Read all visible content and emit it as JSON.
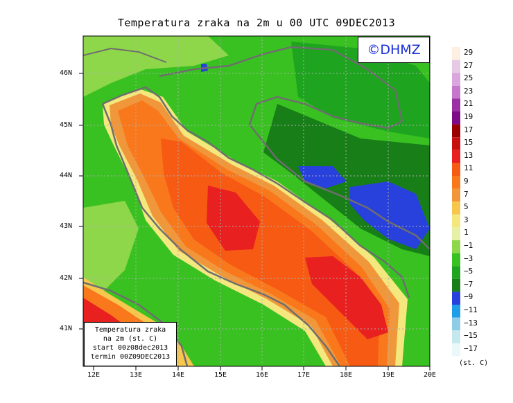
{
  "title": "Temperatura zraka na 2m u 00 UTC 09DEC2013",
  "logo": "©DHMZ",
  "info": {
    "line1": "Temperatura zraka",
    "line2": "na 2m (st. C)",
    "line3": "start 00z08dec2013",
    "line4": "termin 00Z09DEC2013"
  },
  "legend": {
    "labels": [
      "29",
      "27",
      "25",
      "23",
      "21",
      "19",
      "17",
      "15",
      "13",
      "11",
      "9",
      "7",
      "5",
      "3",
      "1",
      "−1",
      "−3",
      "−5",
      "−7",
      "−9",
      "−11",
      "−13",
      "−15",
      "−17"
    ],
    "colors": [
      "#fdefe2",
      "#e6c9e4",
      "#d9a6dd",
      "#c577cc",
      "#9b30a4",
      "#7d0a86",
      "#990000",
      "#c80f0f",
      "#e82020",
      "#f65a13",
      "#fa781c",
      "#f1973b",
      "#f7c74d",
      "#f3e77e",
      "#e7f1a6",
      "#8ed64a",
      "#39c121",
      "#1ea41e",
      "#187e18",
      "#2840dc",
      "#1f9ee8",
      "#8fcde6",
      "#c5e7ee",
      "#eaf8f9"
    ],
    "unit": "(st. C)"
  },
  "axes": {
    "y_ticks": [
      "46N",
      "45N",
      "44N",
      "43N",
      "42N",
      "41N"
    ],
    "x_ticks": [
      "12E",
      "13E",
      "14E",
      "15E",
      "16E",
      "17E",
      "18E",
      "19E",
      "20E"
    ]
  }
}
